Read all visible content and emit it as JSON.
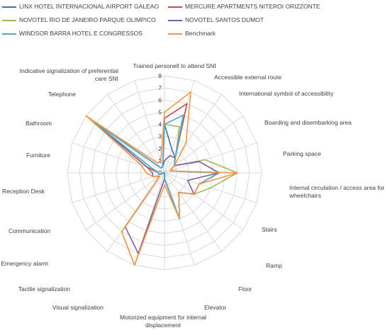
{
  "chart_data": {
    "type": "radar",
    "r_range": [
      0,
      8
    ],
    "ticks": [
      0,
      1,
      2,
      3,
      4,
      5,
      6,
      7,
      8
    ],
    "grid": true,
    "legend_position": "top",
    "categories": [
      "Trained personell to attend SNI",
      "Accessible external route",
      "International symbol of accessibility",
      "Boarding and disembarking area",
      "Parking space",
      "Internal circulation  / access area for wheelchairs",
      "Stairs",
      "Ramp",
      "Floor",
      "Elevator",
      "Motorized equipment  for internal displacement",
      "Visual signalization",
      "Tactile signalization",
      "Emergency alarm",
      "Communication",
      "Reception  Desk",
      "Furniture",
      "Bathroom",
      "Telephone",
      "Indicative signalization  of preferential care SNI"
    ],
    "series": [
      {
        "name": "LINX HOTEL INTERNACIONAL  AIRPORT GALEAO",
        "color": "#3f6fb0",
        "values": [
          4,
          2,
          1.5,
          1,
          0.5,
          4.5,
          3,
          3,
          2,
          4,
          0.5,
          0,
          0,
          0,
          0.5,
          0.5,
          1,
          7.5,
          0.5,
          0.5
        ]
      },
      {
        "name": "MERCURE APARTMENTS NITEROI ORIZZONTE",
        "color": "#c0504d",
        "values": [
          4.5,
          6,
          1.5,
          1,
          0.5,
          4.5,
          3,
          3,
          2,
          4,
          0.5,
          0,
          0,
          0,
          0.5,
          0.5,
          1.5,
          7.5,
          0.5,
          0.5
        ]
      },
      {
        "name": "NOVOTEL RIO DE JANEIRO PARQUE OLIMPICO",
        "color": "#9bbb59",
        "values": [
          4,
          4,
          1.5,
          1,
          3.5,
          6,
          4,
          3,
          2,
          4,
          0.5,
          8,
          6,
          0.5,
          1,
          1.5,
          2,
          7.5,
          0.5,
          0.5
        ]
      },
      {
        "name": "NOVOTEL SANTOS DUMOT",
        "color": "#7f5fa0",
        "values": [
          1,
          1.5,
          1.5,
          1,
          3,
          4.5,
          2,
          3,
          2,
          4,
          0.5,
          7,
          5.5,
          0.5,
          1,
          1,
          1.5,
          7.5,
          0.5,
          0.5
        ]
      },
      {
        "name": "WINDSOR BARRA HOTEL E CONGRESSOS",
        "color": "#4bacc6",
        "values": [
          4,
          5,
          1.5,
          1,
          0.5,
          4.5,
          3,
          3,
          2,
          4,
          0.5,
          0,
          0,
          0,
          0.5,
          0.5,
          1,
          7.5,
          0.5,
          0.5
        ]
      },
      {
        "name": "Benchmark",
        "color": "#f79646",
        "values": [
          5,
          7,
          3,
          1,
          0.5,
          6,
          3,
          3,
          2,
          4,
          1,
          8,
          6,
          0.5,
          1,
          1.5,
          2,
          8,
          1,
          1
        ]
      }
    ]
  }
}
